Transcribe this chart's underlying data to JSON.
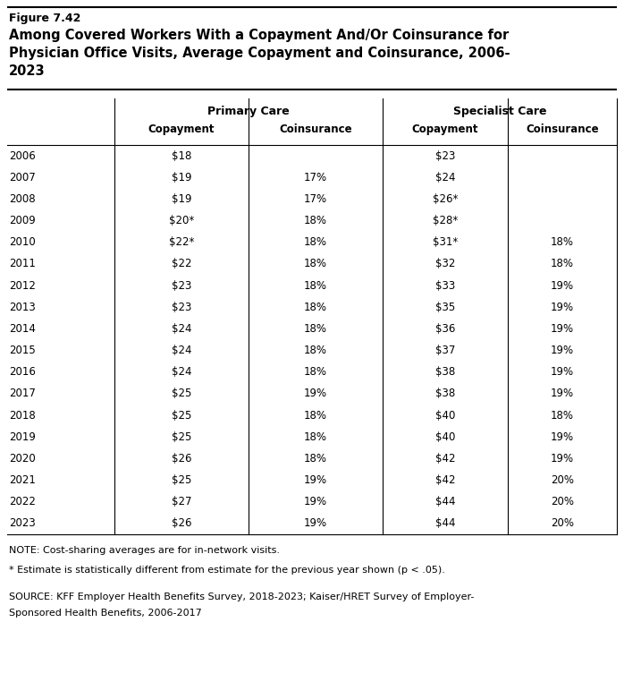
{
  "figure_label": "Figure 7.42",
  "title_line1": "Among Covered Workers With a Copayment And/Or Coinsurance for",
  "title_line2": "Physician Office Visits, Average Copayment and Coinsurance, 2006-",
  "title_line3": "2023",
  "col_headers_level1": [
    "Primary Care",
    "Specialist Care"
  ],
  "col_headers_level2": [
    "Copayment",
    "Coinsurance",
    "Copayment",
    "Coinsurance"
  ],
  "years": [
    "2006",
    "2007",
    "2008",
    "2009",
    "2010",
    "2011",
    "2012",
    "2013",
    "2014",
    "2015",
    "2016",
    "2017",
    "2018",
    "2019",
    "2020",
    "2021",
    "2022",
    "2023"
  ],
  "primary_copay": [
    "$18",
    "$19",
    "$19",
    "$20*",
    "$22*",
    "$22",
    "$23",
    "$23",
    "$24",
    "$24",
    "$24",
    "$25",
    "$25",
    "$25",
    "$26",
    "$25",
    "$27",
    "$26"
  ],
  "primary_coins": [
    "",
    "17%",
    "17%",
    "18%",
    "18%",
    "18%",
    "18%",
    "18%",
    "18%",
    "18%",
    "18%",
    "19%",
    "18%",
    "18%",
    "18%",
    "19%",
    "19%",
    "19%"
  ],
  "specialist_copay": [
    "$23",
    "$24",
    "$26*",
    "$28*",
    "$31*",
    "$32",
    "$33",
    "$35",
    "$36",
    "$37",
    "$38",
    "$38",
    "$40",
    "$40",
    "$42",
    "$42",
    "$44",
    "$44"
  ],
  "specialist_coins": [
    "",
    "",
    "",
    "",
    "18%",
    "18%",
    "19%",
    "19%",
    "19%",
    "19%",
    "19%",
    "19%",
    "18%",
    "19%",
    "19%",
    "20%",
    "20%",
    "20%"
  ],
  "note1": "NOTE: Cost-sharing averages are for in-network visits.",
  "note2": "* Estimate is statistically different from estimate for the previous year shown (p < .05).",
  "source_line1": "SOURCE: KFF Employer Health Benefits Survey, 2018-2023; Kaiser/HRET Survey of Employer-",
  "source_line2": "Sponsored Health Benefits, 2006-2017",
  "bg_color": "#ffffff",
  "text_color": "#000000",
  "fig_width": 6.98,
  "fig_height": 7.62,
  "dpi": 100
}
